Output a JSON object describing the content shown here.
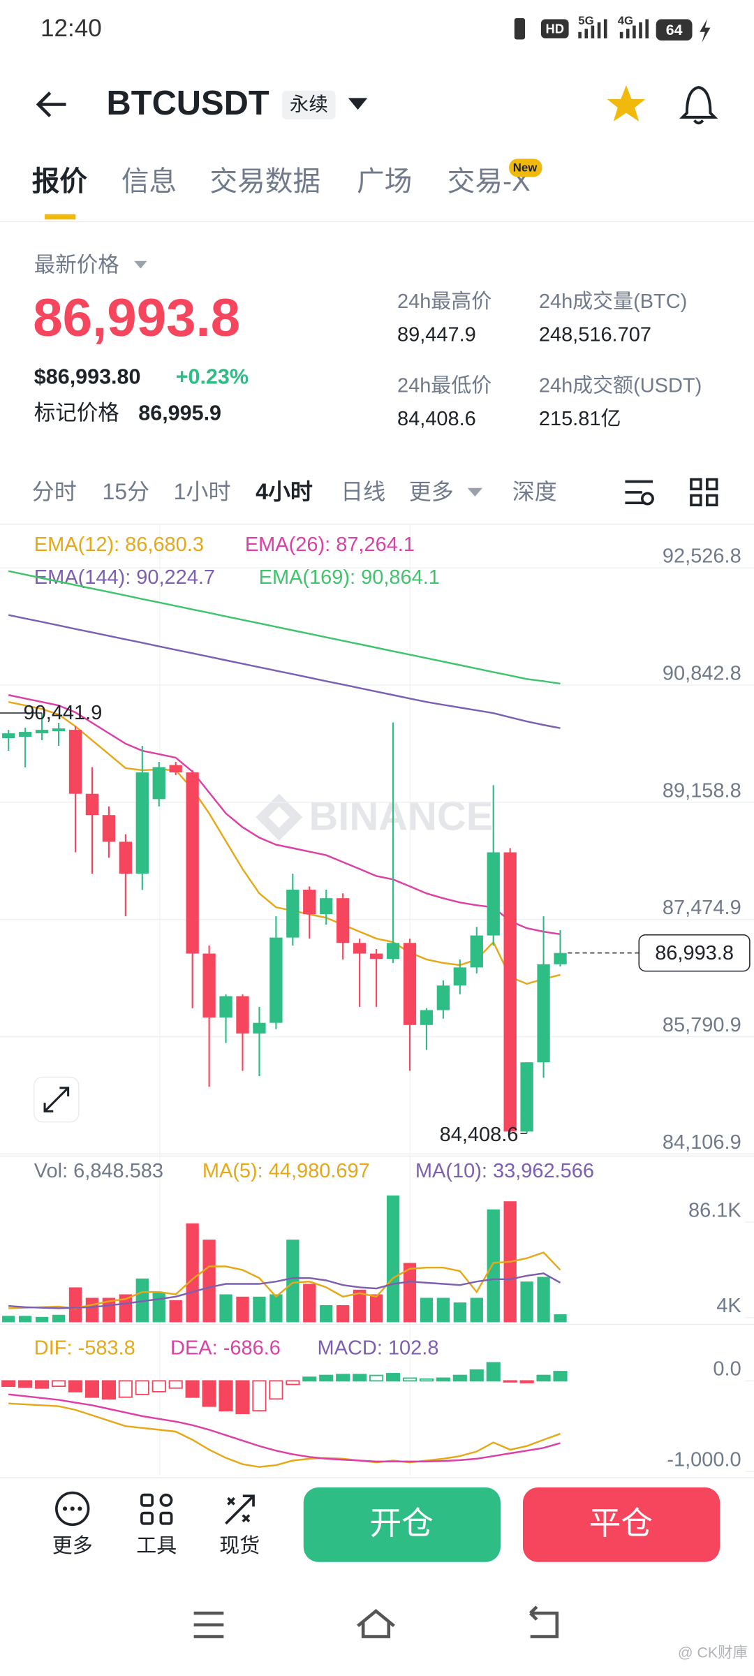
{
  "status_bar": {
    "time": "12:40",
    "hd": "HD",
    "network": [
      "5G",
      "4G"
    ],
    "battery": "64"
  },
  "header": {
    "symbol": "BTCUSDT",
    "contract": "永续"
  },
  "tabs": [
    "报价",
    "信息",
    "交易数据",
    "广场",
    "交易-X"
  ],
  "tab_badge": "New",
  "price": {
    "label": "最新价格",
    "last": "86,993.8",
    "usd": "$86,993.80",
    "change": "+0.23%",
    "mark_label": "标记价格",
    "mark": "86,995.9"
  },
  "stats": [
    {
      "label": "24h最高价",
      "value": "89,447.9"
    },
    {
      "label": "24h成交量(BTC)",
      "value": "248,516.707"
    },
    {
      "label": "24h最低价",
      "value": "84,408.6"
    },
    {
      "label": "24h成交额(USDT)",
      "value": "215.81亿"
    }
  ],
  "intervals": [
    "分时",
    "15分",
    "1小时",
    "4小时",
    "日线",
    "更多",
    "深度"
  ],
  "watermark": "BINANCE",
  "chart_data": [
    {
      "type": "candlestick",
      "up_color": "#2ebd85",
      "down_color": "#f6465d",
      "open": [
        90080,
        90100,
        90150,
        90180,
        90200,
        89281,
        88975,
        88592,
        88133,
        89204,
        89694,
        89588,
        86985,
        86066,
        86373,
        85837,
        85990,
        87215,
        87903,
        87551,
        87781,
        87138,
        86985,
        86908,
        87138,
        85959,
        86173,
        86526,
        86786,
        87245,
        88440,
        84428,
        85423,
        86832
      ],
      "high": [
        90200,
        90230,
        90441.9,
        90300,
        90250,
        89664,
        89100,
        88700,
        89970,
        89740,
        89740,
        89620,
        87100,
        86400,
        86400,
        86219,
        87521,
        88133,
        87950,
        87903,
        87850,
        87200,
        87050,
        90307,
        87200,
        86200,
        86600,
        86900,
        87368,
        89404,
        88500,
        85423,
        87521,
        87322
      ],
      "low": [
        89900,
        89660,
        90050,
        89970,
        88440,
        88133,
        88362,
        87521,
        87900,
        89100,
        89550,
        86200,
        85071,
        85700,
        85301,
        85224,
        85900,
        87100,
        87200,
        87400,
        86900,
        86219,
        86219,
        86850,
        85301,
        85600,
        86050,
        86400,
        86700,
        87100,
        84408.6,
        84400,
        85200,
        86800
      ],
      "close": [
        90150,
        90170,
        90200,
        90220,
        89281,
        88975,
        88592,
        88133,
        89588,
        89664,
        89588,
        86985,
        86066,
        86373,
        85837,
        85990,
        87215,
        87903,
        87551,
        87781,
        87138,
        86985,
        86908,
        87138,
        85959,
        86173,
        86526,
        86786,
        87245,
        88440,
        84428,
        85423,
        86832,
        86993.8
      ],
      "series": [
        {
          "name": "EMA(12): 86,680.3",
          "color": "#e6a817",
          "values": [
            90600,
            90550,
            90500,
            90420,
            90250,
            90050,
            89850,
            89650,
            89620,
            89630,
            89620,
            89350,
            89000,
            88600,
            88200,
            87850,
            87650,
            87600,
            87550,
            87500,
            87400,
            87300,
            87200,
            87150,
            87000,
            86900,
            86850,
            86820,
            86900,
            87150,
            86650,
            86550,
            86620,
            86680.3
          ]
        },
        {
          "name": "EMA(26): 87,264.1",
          "color": "#dc3fa6",
          "values": [
            90700,
            90650,
            90600,
            90550,
            90450,
            90300,
            90150,
            90000,
            89900,
            89850,
            89800,
            89600,
            89300,
            89000,
            88800,
            88650,
            88550,
            88500,
            88450,
            88400,
            88300,
            88200,
            88100,
            88050,
            87950,
            87850,
            87780,
            87720,
            87680,
            87650,
            87450,
            87350,
            87300,
            87264.1
          ]
        },
        {
          "name": "EMA(144): 90,224.7",
          "color": "#7d5fb2",
          "values": [
            91850,
            91800,
            91750,
            91700,
            91650,
            91600,
            91550,
            91500,
            91450,
            91400,
            91350,
            91300,
            91250,
            91200,
            91150,
            91100,
            91050,
            91000,
            90950,
            90900,
            90850,
            90800,
            90750,
            90700,
            90650,
            90600,
            90560,
            90520,
            90480,
            90440,
            90380,
            90320,
            90270,
            90224.7
          ]
        },
        {
          "name": "EMA(169): 90,864.1",
          "color": "#3ec56b",
          "values": [
            92480,
            92430,
            92380,
            92330,
            92280,
            92230,
            92180,
            92130,
            92080,
            92030,
            91980,
            91930,
            91880,
            91830,
            91780,
            91730,
            91680,
            91630,
            91580,
            91530,
            91480,
            91430,
            91380,
            91330,
            91280,
            91230,
            91180,
            91130,
            91080,
            91030,
            90980,
            90930,
            90900,
            90864.1
          ]
        }
      ],
      "ylim": [
        84076,
        93139
      ],
      "yticks": [
        {
          "value": 92526.8,
          "label": "92,526.8"
        },
        {
          "value": 90842.8,
          "label": "90,842.8"
        },
        {
          "value": 89158.8,
          "label": "89,158.8"
        },
        {
          "value": 87474.9,
          "label": "87,474.9"
        },
        {
          "value": 85790.9,
          "label": "85,790.9"
        },
        {
          "value": 84106.9,
          "label": "84,106.9"
        }
      ],
      "high_label": "90,441.9",
      "low_label": "84,408.6",
      "last_label": "86,993.8",
      "grid": true
    },
    {
      "type": "volume",
      "title": "Vol: 6,848.583",
      "values": [
        5500,
        5500,
        4600,
        6400,
        30000,
        21000,
        21000,
        24000,
        37600,
        25600,
        19000,
        85000,
        71000,
        24000,
        22000,
        22000,
        24000,
        71000,
        33000,
        14700,
        14700,
        28000,
        24000,
        109000,
        51000,
        21000,
        21000,
        17000,
        21000,
        97000,
        104000,
        35000,
        39000,
        6848.583
      ],
      "series": [
        {
          "name": "MA(5): 44,980.697",
          "color": "#e6a817",
          "values": [
            12000,
            12500,
            13000,
            13500,
            12000,
            15000,
            18000,
            20000,
            26000,
            26000,
            24000,
            37000,
            48000,
            48000,
            45000,
            38000,
            22000,
            34000,
            35000,
            30000,
            22000,
            25000,
            22000,
            38000,
            46000,
            47000,
            47000,
            44000,
            26000,
            51000,
            52000,
            55000,
            60000,
            44980.697
          ]
        },
        {
          "name": "MA(10): 33,962.566",
          "color": "#7d5fb2",
          "values": [
            14000,
            13000,
            12500,
            12000,
            12500,
            13000,
            14500,
            16000,
            18000,
            20000,
            22000,
            26000,
            30000,
            33000,
            33000,
            33000,
            35000,
            38000,
            38000,
            36000,
            32000,
            30000,
            29000,
            33000,
            35000,
            34000,
            33000,
            32000,
            35000,
            37000,
            37000,
            40000,
            42000,
            33962.566
          ]
        }
      ],
      "ylim": [
        0,
        115400
      ],
      "yticks": [
        {
          "value": 86100,
          "label": "86.1K"
        },
        {
          "value": 4000,
          "label": "4K"
        }
      ]
    },
    {
      "type": "macd",
      "title": "MACD: 102.8",
      "up_color": "#2ebd85",
      "down_color": "#f6465d",
      "values": [
        -60,
        -70,
        -80,
        -60,
        -120,
        -180,
        -200,
        -180,
        -150,
        -120,
        -80,
        -180,
        -280,
        -330,
        -360,
        -330,
        -200,
        -40,
        40,
        60,
        70,
        70,
        60,
        80,
        30,
        20,
        30,
        60,
        120,
        200,
        -10,
        -20,
        60,
        102.8
      ],
      "series": [
        {
          "name": "DIF: -583.8",
          "color": "#e6a817",
          "values": [
            -250,
            -260,
            -270,
            -280,
            -320,
            -380,
            -440,
            -500,
            -520,
            -540,
            -560,
            -650,
            -760,
            -850,
            -920,
            -950,
            -930,
            -880,
            -860,
            -850,
            -860,
            -880,
            -900,
            -880,
            -900,
            -880,
            -860,
            -830,
            -780,
            -680,
            -760,
            -720,
            -650,
            -583.8
          ]
        },
        {
          "name": "DEA: -686.6",
          "color": "#dc3fa6",
          "values": [
            -150,
            -170,
            -190,
            -210,
            -240,
            -270,
            -310,
            -350,
            -390,
            -420,
            -450,
            -490,
            -540,
            -600,
            -660,
            -720,
            -770,
            -810,
            -840,
            -860,
            -870,
            -880,
            -890,
            -890,
            -890,
            -890,
            -885,
            -875,
            -860,
            -830,
            -800,
            -770,
            -740,
            -686.6
          ]
        }
      ],
      "ylim": [
        -1047,
        541
      ],
      "yticks": [
        {
          "value": 0,
          "label": "0.0"
        },
        {
          "value": -1000,
          "label": "-1,000.0"
        }
      ]
    }
  ],
  "bottom_bar": {
    "actions": [
      "更多",
      "工具",
      "现货"
    ],
    "open": "开仓",
    "close": "平仓"
  },
  "credit": "@ CK财庫"
}
